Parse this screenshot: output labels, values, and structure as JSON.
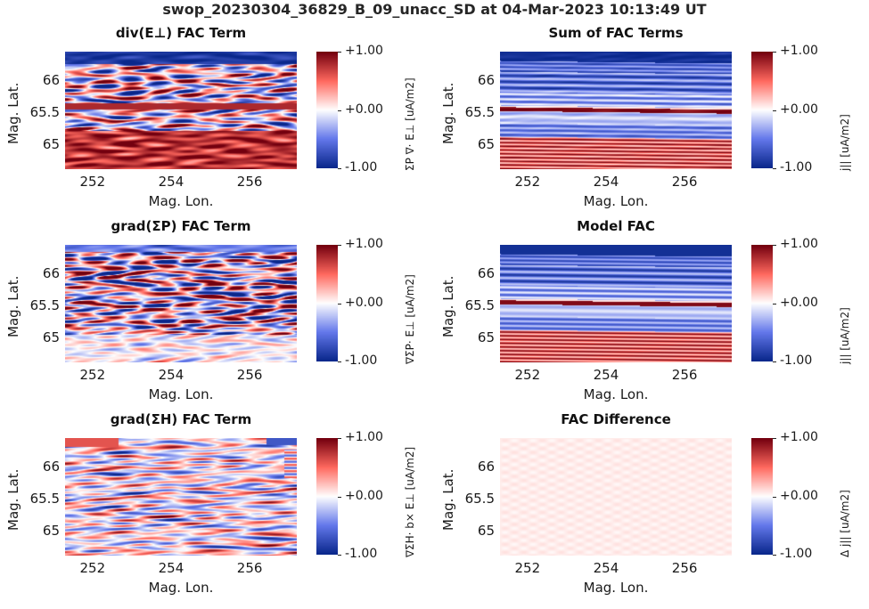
{
  "suptitle": "swop_20230304_36829_B_09_unacc_SD at 04-Mar-2023 10:13:49 UT",
  "chart_data": [
    {
      "type": "heatmap",
      "title": "div(E⊥) FAC Term",
      "xlabel": "Mag. Lon.",
      "ylabel": "Mag. Lat.",
      "xlim": [
        251.3,
        257.2
      ],
      "ylim": [
        64.63,
        66.45
      ],
      "xticks": [
        "252",
        "254",
        "256"
      ],
      "yticks": [
        "66",
        "65.5",
        "65"
      ],
      "colorbar": {
        "label": "ΣP ∇· E⊥ [uA/m2]",
        "ticks": [
          "+1.00",
          "+0.00",
          "-1.00"
        ],
        "clim": [
          -1,
          1
        ],
        "cmap": "blue-white-red"
      },
      "pattern": "blue band at top, mixed red/blue streaks in middle, strong red bottom"
    },
    {
      "type": "heatmap",
      "title": "Sum of FAC Terms",
      "xlabel": "Mag. Lon.",
      "ylabel": "Mag. Lat.",
      "xlim": [
        251.3,
        257.2
      ],
      "ylim": [
        64.63,
        66.45
      ],
      "xticks": [
        "252",
        "254",
        "256"
      ],
      "yticks": [
        "66",
        "65.5",
        "65"
      ],
      "colorbar": {
        "label": "j|| [uA/m2]",
        "ticks": [
          "+1.00",
          "+0.00",
          "-1.00"
        ],
        "clim": [
          -1,
          1
        ],
        "cmap": "blue-white-red"
      },
      "pattern": "horizontal bands: blue top, thin red line near 65.55, red bottom"
    },
    {
      "type": "heatmap",
      "title": "grad(ΣP) FAC Term",
      "xlabel": "Mag. Lon.",
      "ylabel": "Mag. Lat.",
      "xlim": [
        251.3,
        257.2
      ],
      "ylim": [
        64.63,
        66.45
      ],
      "xticks": [
        "252",
        "254",
        "256"
      ],
      "yticks": [
        "66",
        "65.5",
        "65"
      ],
      "colorbar": {
        "label": "∇ΣP· E⊥ [uA/m2]",
        "ticks": [
          "+1.00",
          "+0.00",
          "-1.00"
        ],
        "clim": [
          -1,
          1
        ],
        "cmap": "blue-white-red"
      },
      "pattern": "noisy red/blue streaks, fading to near-white at bottom"
    },
    {
      "type": "heatmap",
      "title": "Model FAC",
      "xlabel": "Mag. Lon.",
      "ylabel": "Mag. Lat.",
      "xlim": [
        251.3,
        257.2
      ],
      "ylim": [
        64.63,
        66.45
      ],
      "xticks": [
        "252",
        "254",
        "256"
      ],
      "yticks": [
        "66",
        "65.5",
        "65"
      ],
      "colorbar": {
        "label": "j|| [uA/m2]",
        "ticks": [
          "+1.00",
          "+0.00",
          "-1.00"
        ],
        "clim": [
          -1,
          1
        ],
        "cmap": "blue-white-red"
      },
      "pattern": "clean horizontal bands: blue top, thin red line near 65.55, red bottom"
    },
    {
      "type": "heatmap",
      "title": "grad(ΣH) FAC Term",
      "xlabel": "Mag. Lon.",
      "ylabel": "Mag. Lat.",
      "xlim": [
        251.3,
        257.2
      ],
      "ylim": [
        64.63,
        66.45
      ],
      "xticks": [
        "252",
        "254",
        "256"
      ],
      "yticks": [
        "66",
        "65.5",
        "65"
      ],
      "colorbar": {
        "label": "∇ΣH· b× E⊥ [uA/m2]",
        "ticks": [
          "+1.00",
          "+0.00",
          "-1.00"
        ],
        "clim": [
          -1,
          1
        ],
        "cmap": "blue-white-red"
      },
      "pattern": "weak mottled red/blue, mostly pale"
    },
    {
      "type": "heatmap",
      "title": "FAC Difference",
      "xlabel": "Mag. Lon.",
      "ylabel": "Mag. Lat.",
      "xlim": [
        251.3,
        257.2
      ],
      "ylim": [
        64.63,
        66.45
      ],
      "xticks": [
        "252",
        "254",
        "256"
      ],
      "yticks": [
        "66",
        "65.5",
        "65"
      ],
      "colorbar": {
        "label": "Δ j|| [uA/m2]",
        "ticks": [
          "+1.00",
          "+0.00",
          "-1.00"
        ],
        "clim": [
          -1,
          1
        ],
        "cmap": "blue-white-red"
      },
      "pattern": "nearly uniform very pale pink, near zero"
    }
  ]
}
